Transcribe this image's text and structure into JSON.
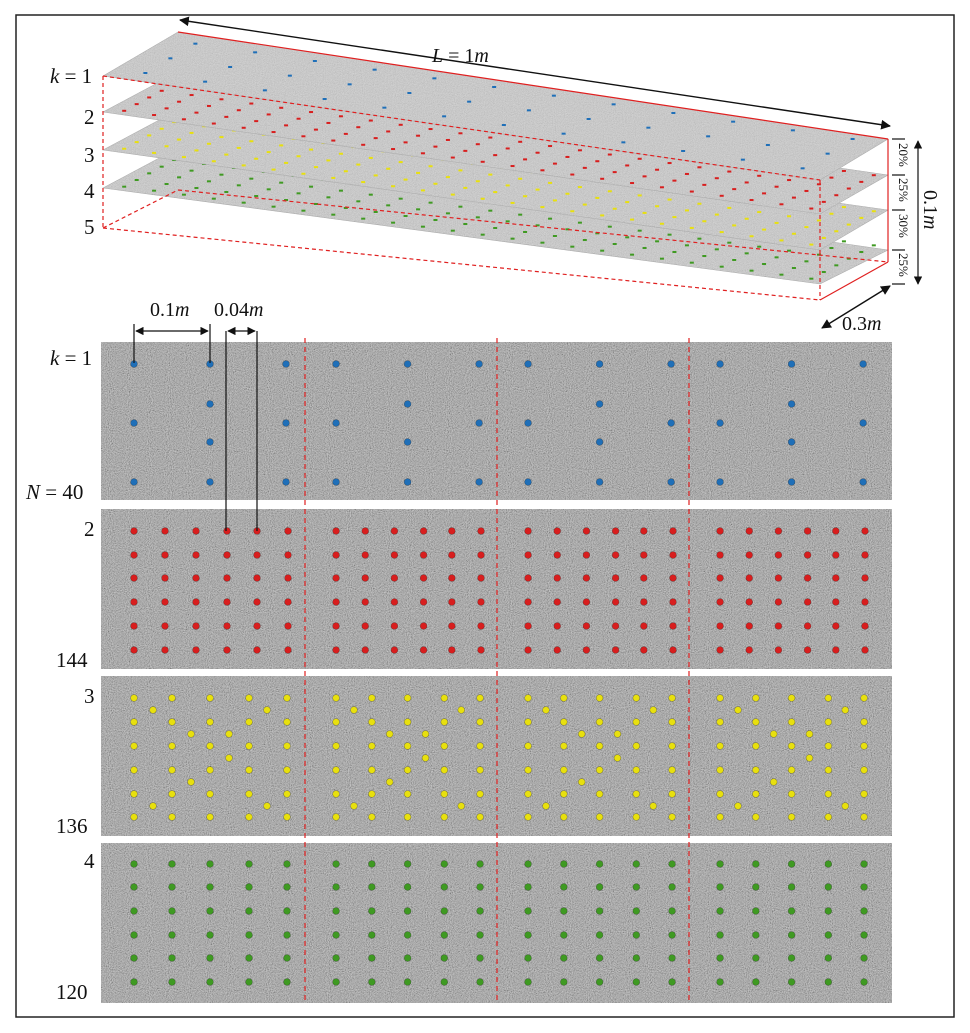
{
  "figure": {
    "colors": {
      "k1": "#1f6fb8",
      "k2": "#d81e1e",
      "k3": "#e8e00e",
      "k4": "#3f9a22",
      "slab": "#9a9a9a",
      "guide": "#e02020"
    },
    "iso": {
      "length_label": {
        "var": "L",
        "eq": " = 1",
        "unit": "m"
      },
      "height_label": {
        "value": "0.1",
        "unit": "m"
      },
      "width_label": {
        "value": "0.3",
        "unit": "m"
      },
      "layer_labels": [
        {
          "k": "k",
          "eq": " = 1"
        },
        {
          "text": "2"
        },
        {
          "text": "3"
        },
        {
          "text": "4"
        },
        {
          "text": "5"
        }
      ],
      "percents": [
        "20%",
        "25%",
        "30%",
        "25%"
      ]
    },
    "plan": {
      "spacing_a": {
        "value": "0.1",
        "unit": "m"
      },
      "spacing_b": {
        "value": "0.04",
        "unit": "m"
      },
      "panels": [
        {
          "k_label": {
            "k": "k",
            "eq": " = 1"
          },
          "n_label": {
            "n": "N",
            "eq": " = 40"
          },
          "color_key": "k1",
          "count": 40
        },
        {
          "k_label": {
            "text": "2"
          },
          "n_label": {
            "text": "144"
          },
          "color_key": "k2",
          "count": 144
        },
        {
          "k_label": {
            "text": "3"
          },
          "n_label": {
            "text": "136"
          },
          "color_key": "k3",
          "count": 136
        },
        {
          "k_label": {
            "text": "4"
          },
          "n_label": {
            "text": "120"
          },
          "color_key": "k4",
          "count": 120
        }
      ]
    }
  }
}
